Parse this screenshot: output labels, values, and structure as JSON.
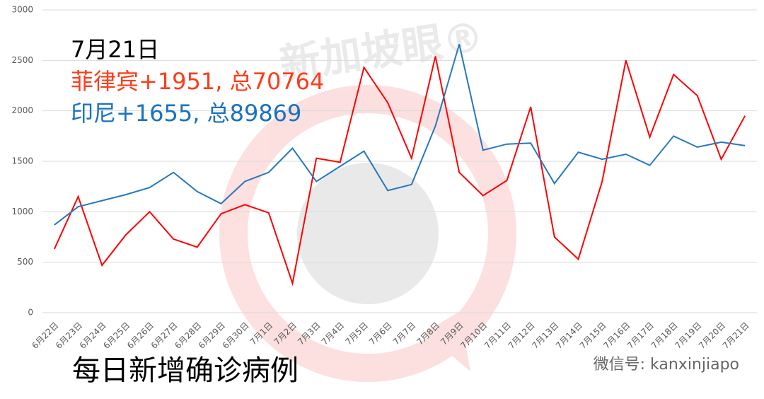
{
  "chart_data": {
    "type": "line",
    "annotations": [
      {
        "text": "7月21日",
        "color": "#000000"
      },
      {
        "text": "菲律宾+1951, 总70764",
        "color": "#ff3b1a"
      },
      {
        "text": "印尼+1655, 总89869",
        "color": "#1a72c0"
      }
    ],
    "caption": "每日新增确诊病例",
    "watermark": "新加坡眼®",
    "source": "微信号: kanxinjiapo",
    "categories": [
      "6月22日",
      "6月23日",
      "6月24日",
      "6月25日",
      "6月26日",
      "6月27日",
      "6月28日",
      "6月29日",
      "6月30日",
      "7月1日",
      "7月2日",
      "7月3日",
      "7月4日",
      "7月5日",
      "7月6日",
      "7月7日",
      "7月8日",
      "7月9日",
      "7月10日",
      "7月11日",
      "7月12日",
      "7月13日",
      "7月14日",
      "7月15日",
      "7月16日",
      "7月17日",
      "7月18日",
      "7月19日",
      "7月20日",
      "7月21日"
    ],
    "series": [
      {
        "color": "#ff0000",
        "values": [
          630,
          1150,
          470,
          770,
          1000,
          730,
          650,
          980,
          1070,
          990,
          290,
          1530,
          1490,
          2430,
          2080,
          1530,
          2540,
          1390,
          1160,
          1310,
          2040,
          750,
          530,
          1300,
          2500,
          1740,
          2360,
          2150,
          1520,
          1951
        ]
      },
      {
        "color": "#2478c0",
        "values": [
          870,
          1050,
          1110,
          1170,
          1240,
          1390,
          1200,
          1080,
          1300,
          1390,
          1630,
          1300,
          1450,
          1600,
          1210,
          1270,
          1850,
          2660,
          1610,
          1670,
          1680,
          1280,
          1590,
          1520,
          1570,
          1460,
          1750,
          1640,
          1690,
          1655
        ]
      }
    ],
    "ylim": [
      0,
      3000
    ],
    "yticks": [
      0,
      500,
      1000,
      1500,
      2000,
      2500,
      3000
    ],
    "grid": true
  }
}
